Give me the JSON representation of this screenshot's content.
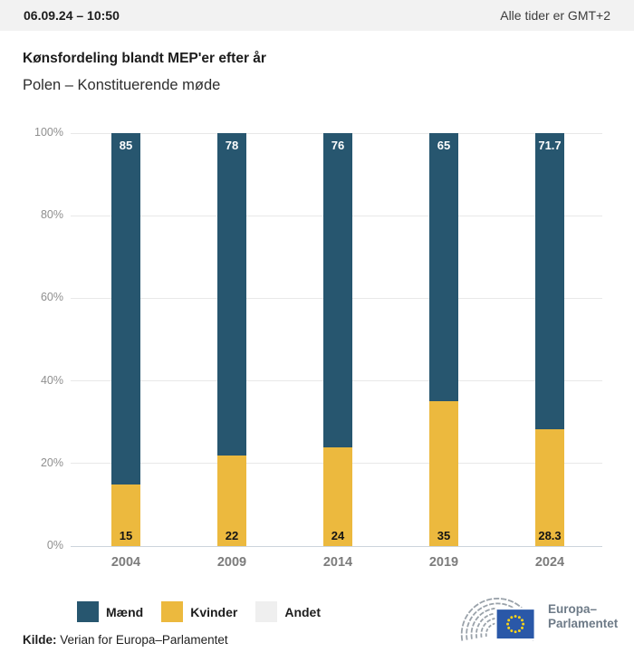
{
  "header": {
    "datetime": "06.09.24 – 10:50",
    "timezone_note": "Alle tider er GMT+2"
  },
  "title": "Kønsfordeling blandt MEP'er efter år",
  "subtitle": "Polen – Konstituerende møde",
  "chart_data": {
    "type": "bar",
    "stacked": true,
    "categories": [
      "2004",
      "2009",
      "2014",
      "2019",
      "2024"
    ],
    "series": [
      {
        "name": "Mænd",
        "color": "#27566F",
        "values": [
          85,
          78,
          76,
          65,
          71.7
        ],
        "label_color": "#ffffff",
        "label_position": "inside-top"
      },
      {
        "name": "Kvinder",
        "color": "#ECB93E",
        "values": [
          15,
          22,
          24,
          35,
          28.3
        ],
        "label_color": "#141414",
        "label_position": "inside-bottom"
      }
    ],
    "legend_entries": [
      {
        "label": "Mænd",
        "color": "#27566F"
      },
      {
        "label": "Kvinder",
        "color": "#ECB93E"
      },
      {
        "label": "Andet",
        "color": "#EFEFEF"
      }
    ],
    "title": "Kønsfordeling blandt MEP'er efter år",
    "subtitle": "Polen – Konstituerende møde",
    "xlabel": "",
    "ylabel": "",
    "ylim": [
      0,
      100
    ],
    "yticks": [
      "0%",
      "20%",
      "40%",
      "60%",
      "80%",
      "100%"
    ],
    "grid": true,
    "legend_position": "bottom",
    "value_labels": true
  },
  "logo": {
    "line1": "Europa–",
    "line2": "Parlamentet"
  },
  "footer": {
    "source_label": "Kilde:",
    "source_text": "Verian for Europa–Parlamentet"
  },
  "colors": {
    "men": "#27566F",
    "women": "#ECB93E",
    "other": "#EFEFEF",
    "topbar_bg": "#F2F2F2",
    "gridline": "#E8E8E8",
    "baseline": "#CCD4DC",
    "axis_text": "#8F8F8F",
    "logo_text": "#6D7A87",
    "eu_flag_blue": "#2A58A8",
    "eu_star_yellow": "#FFD617"
  }
}
